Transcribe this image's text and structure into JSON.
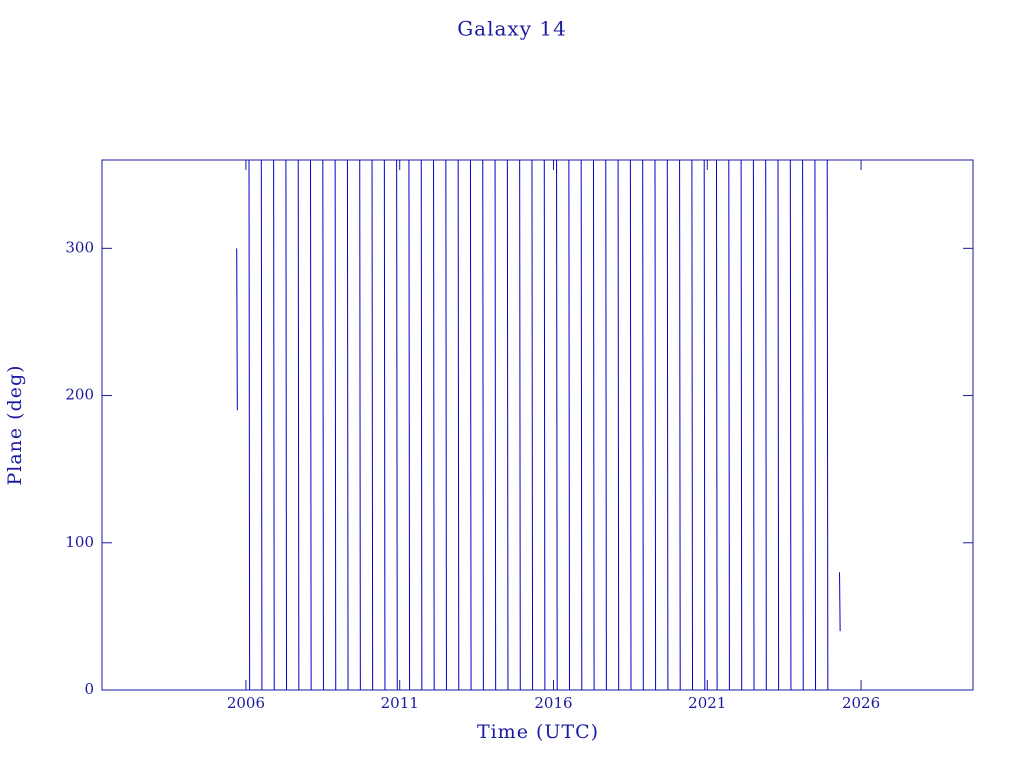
{
  "chart_data": {
    "type": "line",
    "title": "Galaxy 14",
    "x_label": "Time (UTC)",
    "y_label": "Plane (deg)",
    "xlim": [
      2001.32,
      2029.64
    ],
    "xticks": [
      2006,
      2011,
      2016,
      2021,
      2026
    ],
    "ylim": [
      0,
      360
    ],
    "yticks": [
      0,
      100,
      200,
      300
    ],
    "grid": false,
    "x": [
      2005.7,
      2005.72,
      2005.72,
      2006.1,
      2006.12,
      2006.12,
      2006.5,
      2006.52,
      2006.52,
      2006.9,
      2006.92,
      2006.92,
      2007.3,
      2007.32,
      2007.32,
      2007.7,
      2007.72,
      2007.72,
      2008.1,
      2008.12,
      2008.12,
      2008.5,
      2008.52,
      2008.52,
      2008.9,
      2008.92,
      2008.92,
      2009.3,
      2009.32,
      2009.32,
      2009.7,
      2009.72,
      2009.72,
      2010.1,
      2010.12,
      2010.12,
      2010.5,
      2010.52,
      2010.52,
      2010.9,
      2010.92,
      2010.92,
      2011.3,
      2011.32,
      2011.32,
      2011.7,
      2011.72,
      2011.72,
      2012.1,
      2012.12,
      2012.12,
      2012.5,
      2012.52,
      2012.52,
      2012.9,
      2012.92,
      2012.92,
      2013.3,
      2013.32,
      2013.32,
      2013.7,
      2013.72,
      2013.72,
      2014.1,
      2014.12,
      2014.12,
      2014.5,
      2014.52,
      2014.52,
      2014.9,
      2014.92,
      2014.92,
      2015.3,
      2015.32,
      2015.32,
      2015.7,
      2015.72,
      2015.72,
      2016.1,
      2016.12,
      2016.12,
      2016.5,
      2016.52,
      2016.52,
      2016.9,
      2016.92,
      2016.92,
      2017.3,
      2017.32,
      2017.32,
      2017.7,
      2017.72,
      2017.72,
      2018.1,
      2018.12,
      2018.12,
      2018.5,
      2018.52,
      2018.52,
      2018.9,
      2018.92,
      2018.92,
      2019.3,
      2019.32,
      2019.32,
      2019.7,
      2019.72,
      2019.72,
      2020.1,
      2020.12,
      2020.12,
      2020.5,
      2020.52,
      2020.52,
      2020.9,
      2020.92,
      2020.92,
      2021.3,
      2021.32,
      2021.32,
      2021.7,
      2021.72,
      2021.72,
      2022.1,
      2022.12,
      2022.12,
      2022.5,
      2022.52,
      2022.52,
      2022.9,
      2022.92,
      2022.92,
      2023.3,
      2023.32,
      2023.32,
      2023.7,
      2023.72,
      2023.72,
      2024.1,
      2024.12,
      2024.12,
      2024.5,
      2024.52,
      2024.52,
      2024.9,
      2024.92,
      2024.92,
      2025.3,
      2025.32,
      2025.32
    ],
    "series": [
      {
        "name": "Plane",
        "color": "#0000cc",
        "values": [
          300,
          190,
          null,
          360,
          0,
          null,
          360,
          0,
          null,
          360,
          0,
          null,
          360,
          0,
          null,
          360,
          0,
          null,
          360,
          0,
          null,
          360,
          0,
          null,
          360,
          0,
          null,
          360,
          0,
          null,
          360,
          0,
          null,
          360,
          0,
          null,
          360,
          0,
          null,
          360,
          0,
          null,
          360,
          0,
          null,
          360,
          0,
          null,
          360,
          0,
          null,
          360,
          0,
          null,
          360,
          0,
          null,
          360,
          0,
          null,
          360,
          0,
          null,
          360,
          0,
          null,
          360,
          0,
          null,
          360,
          0,
          null,
          360,
          0,
          null,
          360,
          0,
          null,
          360,
          0,
          null,
          360,
          0,
          null,
          360,
          0,
          null,
          360,
          0,
          null,
          360,
          0,
          null,
          360,
          0,
          null,
          360,
          0,
          null,
          360,
          0,
          null,
          360,
          0,
          null,
          360,
          0,
          null,
          360,
          0,
          null,
          360,
          0,
          null,
          360,
          0,
          null,
          360,
          0,
          null,
          360,
          0,
          null,
          360,
          0,
          null,
          360,
          0,
          null,
          360,
          0,
          null,
          360,
          0,
          null,
          360,
          0,
          null,
          360,
          0,
          null,
          360,
          0,
          null,
          360,
          0,
          null,
          80,
          40,
          null
        ]
      }
    ]
  }
}
